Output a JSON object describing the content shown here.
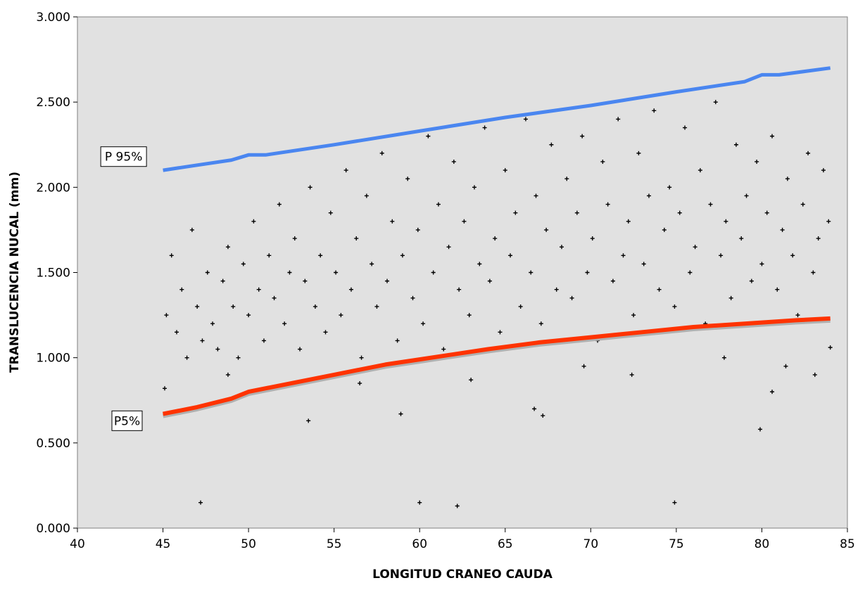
{
  "chart_data": {
    "type": "scatter",
    "title": "",
    "xlabel": "LONGITUD CRANEO CAUDA",
    "ylabel": "TRANSLUCENCIA NUCAL (mm)",
    "xlim": [
      40,
      85
    ],
    "ylim": [
      0,
      3
    ],
    "x_ticks": [
      40,
      45,
      50,
      55,
      60,
      65,
      70,
      75,
      80,
      85
    ],
    "x_tick_labels": [
      "40",
      "45",
      "50",
      "55",
      "60",
      "65",
      "70",
      "75",
      "80",
      "85"
    ],
    "y_ticks": [
      0,
      0.5,
      1,
      1.5,
      2,
      2.5,
      3
    ],
    "y_tick_labels": [
      "0.000",
      "0.500",
      "1.000",
      "1.500",
      "2.000",
      "2.500",
      "3.000"
    ],
    "grid": false,
    "plot_background": "#e1e1e1",
    "series": [
      {
        "name": "P 95%",
        "kind": "line",
        "color": "#4a86f0",
        "x": [
          45,
          47,
          49,
          50,
          51,
          55,
          60,
          65,
          70,
          75,
          79,
          80,
          81,
          84
        ],
        "y": [
          2.1,
          2.13,
          2.16,
          2.19,
          2.19,
          2.25,
          2.33,
          2.41,
          2.48,
          2.56,
          2.62,
          2.66,
          2.66,
          2.7
        ]
      },
      {
        "name": "P5%",
        "kind": "line",
        "color": "#ff3300",
        "x": [
          45,
          47,
          49,
          50,
          52,
          55,
          58,
          60,
          62,
          64,
          67,
          70,
          73,
          76,
          79,
          82,
          84
        ],
        "y": [
          0.67,
          0.71,
          0.76,
          0.8,
          0.84,
          0.9,
          0.96,
          0.99,
          1.02,
          1.05,
          1.09,
          1.12,
          1.15,
          1.18,
          1.2,
          1.22,
          1.23
        ]
      },
      {
        "name": "",
        "kind": "scatter",
        "color": "#000000",
        "marker": "+",
        "x": [
          45.2,
          45.5,
          45.8,
          46.1,
          46.4,
          46.7,
          47.0,
          47.3,
          47.6,
          47.9,
          48.2,
          48.5,
          48.8,
          49.1,
          49.4,
          49.7,
          50.0,
          50.3,
          50.6,
          50.9,
          51.2,
          51.5,
          51.8,
          52.1,
          52.4,
          52.7,
          53.0,
          53.3,
          53.6,
          53.9,
          54.2,
          54.5,
          54.8,
          55.1,
          55.4,
          55.7,
          56.0,
          56.3,
          56.6,
          56.9,
          57.2,
          57.5,
          57.8,
          58.1,
          58.4,
          58.7,
          59.0,
          59.3,
          59.6,
          59.9,
          60.2,
          60.5,
          60.8,
          61.1,
          61.4,
          61.7,
          62.0,
          62.3,
          62.6,
          62.9,
          63.2,
          63.5,
          63.8,
          64.1,
          64.4,
          64.7,
          65.0,
          65.3,
          65.6,
          65.9,
          66.2,
          66.5,
          66.8,
          67.1,
          67.4,
          67.7,
          68.0,
          68.3,
          68.6,
          68.9,
          69.2,
          69.5,
          69.8,
          70.1,
          70.4,
          70.7,
          71.0,
          71.3,
          71.6,
          71.9,
          72.2,
          72.5,
          72.8,
          73.1,
          73.4,
          73.7,
          74.0,
          74.3,
          74.6,
          74.9,
          75.2,
          75.5,
          75.8,
          76.1,
          76.4,
          76.7,
          77.0,
          77.3,
          77.6,
          77.9,
          78.2,
          78.5,
          78.8,
          79.1,
          79.4,
          79.7,
          80.0,
          80.3,
          80.6,
          80.9,
          81.2,
          81.5,
          81.8,
          82.1,
          82.4,
          82.7,
          83.0,
          83.3,
          83.6,
          83.9,
          47.2,
          53.5,
          58.9,
          60.0,
          62.2,
          74.9,
          66.7,
          67.2,
          79.9,
          80.6,
          83.1,
          84.0,
          45.1,
          48.8,
          56.5,
          63.0,
          69.6,
          72.4,
          77.8,
          81.4
        ],
        "y": [
          1.25,
          1.6,
          1.15,
          1.4,
          1.0,
          1.75,
          1.3,
          1.1,
          1.5,
          1.2,
          1.05,
          1.45,
          1.65,
          1.3,
          1.0,
          1.55,
          1.25,
          1.8,
          1.4,
          1.1,
          1.6,
          1.35,
          1.9,
          1.2,
          1.5,
          1.7,
          1.05,
          1.45,
          2.0,
          1.3,
          1.6,
          1.15,
          1.85,
          1.5,
          1.25,
          2.1,
          1.4,
          1.7,
          1.0,
          1.95,
          1.55,
          1.3,
          2.2,
          1.45,
          1.8,
          1.1,
          1.6,
          2.05,
          1.35,
          1.75,
          1.2,
          2.3,
          1.5,
          1.9,
          1.05,
          1.65,
          2.15,
          1.4,
          1.8,
          1.25,
          2.0,
          1.55,
          2.35,
          1.45,
          1.7,
          1.15,
          2.1,
          1.6,
          1.85,
          1.3,
          2.4,
          1.5,
          1.95,
          1.2,
          1.75,
          2.25,
          1.4,
          1.65,
          2.05,
          1.35,
          1.85,
          2.3,
          1.5,
          1.7,
          1.1,
          2.15,
          1.9,
          1.45,
          2.4,
          1.6,
          1.8,
          1.25,
          2.2,
          1.55,
          1.95,
          2.45,
          1.4,
          1.75,
          2.0,
          1.3,
          1.85,
          2.35,
          1.5,
          1.65,
          2.1,
          1.2,
          1.9,
          2.5,
          1.6,
          1.8,
          1.35,
          2.25,
          1.7,
          1.95,
          1.45,
          2.15,
          1.55,
          1.85,
          2.3,
          1.4,
          1.75,
          2.05,
          1.6,
          1.25,
          1.9,
          2.2,
          1.5,
          1.7,
          2.1,
          1.8,
          0.15,
          0.63,
          0.67,
          0.15,
          0.13,
          0.15,
          0.7,
          0.66,
          0.58,
          0.8,
          0.9,
          1.06,
          0.82,
          0.9,
          0.85,
          0.87,
          0.95,
          0.9,
          1.0,
          0.95
        ]
      }
    ],
    "annotations": [
      {
        "text": "P 95%",
        "x": 42.7,
        "y": 2.18
      },
      {
        "text": "P5%",
        "x": 42.9,
        "y": 0.63
      }
    ]
  }
}
